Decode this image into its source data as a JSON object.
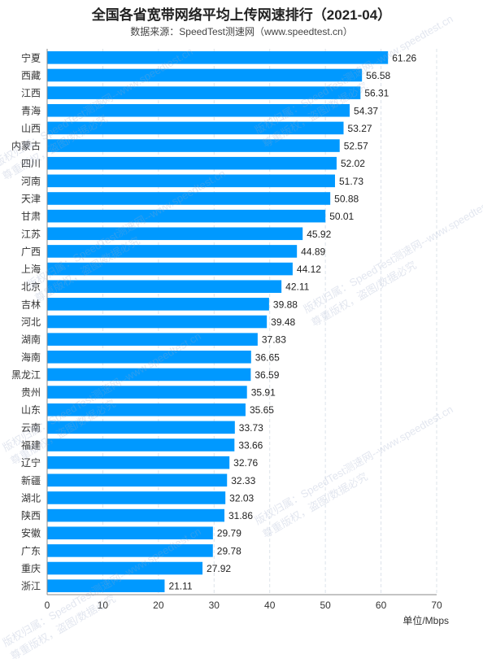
{
  "chart_data": {
    "type": "bar",
    "orientation": "horizontal",
    "title": "全国各省宽带网络平均上传网速排行（2021-04）",
    "subtitle": "数据来源：SpeedTest测速网（www.speedtest.cn）",
    "unit_label": "单位/Mbps",
    "categories": [
      "宁夏",
      "西藏",
      "江西",
      "青海",
      "山西",
      "内蒙古",
      "四川",
      "河南",
      "天津",
      "甘肃",
      "江苏",
      "广西",
      "上海",
      "北京",
      "吉林",
      "河北",
      "湖南",
      "海南",
      "黑龙江",
      "贵州",
      "山东",
      "云南",
      "福建",
      "辽宁",
      "新疆",
      "湖北",
      "陕西",
      "安徽",
      "广东",
      "重庆",
      "浙江"
    ],
    "values": [
      61.26,
      56.58,
      56.31,
      54.37,
      53.27,
      52.57,
      52.02,
      51.73,
      50.88,
      50.01,
      45.92,
      44.89,
      44.12,
      42.11,
      39.88,
      39.48,
      37.83,
      36.65,
      36.59,
      35.91,
      35.65,
      33.73,
      33.66,
      32.76,
      32.33,
      32.03,
      31.86,
      29.79,
      29.78,
      27.92,
      21.11
    ],
    "value_labels": [
      "61.26",
      "56.58",
      "56.31",
      "54.37",
      "53.27",
      "52.57",
      "52.02",
      "51.73",
      "50.88",
      "50.01",
      "45.92",
      "44.89",
      "44.12",
      "42.11",
      "39.88",
      "39.48",
      "37.83",
      "36.65",
      "36.59",
      "35.91",
      "35.65",
      "33.73",
      "33.66",
      "32.76",
      "32.33",
      "32.03",
      "31.86",
      "29.79",
      "29.78",
      "27.92",
      "21.11"
    ],
    "xlim": [
      0,
      70
    ],
    "xticks": [
      "0",
      "10",
      "20",
      "30",
      "40",
      "50",
      "60",
      "70"
    ],
    "grid": "vertical dashed",
    "bar_color": "#0099ff"
  },
  "watermark": {
    "line1": "版权归属：SpeedTest测速网--www.speedtest.cn",
    "line2": "尊重版权，盗图/数据必究"
  }
}
